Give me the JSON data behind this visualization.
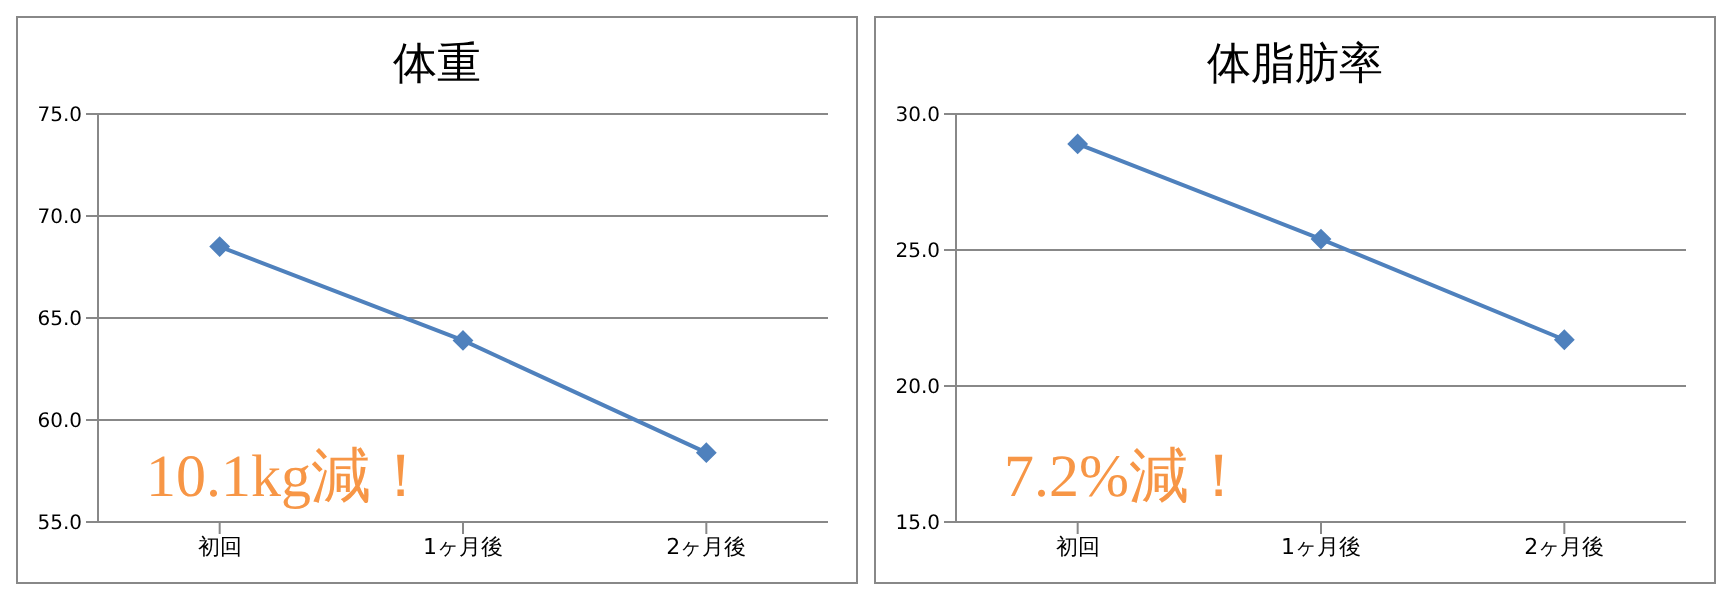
{
  "chart_data": [
    {
      "type": "line",
      "title": "体重",
      "categories": [
        "初回",
        "1ヶ月後",
        "2ヶ月後"
      ],
      "series": [
        {
          "color": "#4f81bd",
          "values": [
            68.5,
            63.9,
            58.4
          ]
        }
      ],
      "ylim": [
        55,
        75
      ],
      "yticks": [
        {
          "value": 55,
          "label": "55.0"
        },
        {
          "value": 60,
          "label": "60.0"
        },
        {
          "value": 65,
          "label": "65.0"
        },
        {
          "value": 70,
          "label": "70.0"
        },
        {
          "value": 75,
          "label": "75.0"
        }
      ],
      "grid": "y",
      "legend": false,
      "marker": "diamond",
      "line_style": "solid",
      "annotations": [
        "10.1kg減！"
      ]
    },
    {
      "type": "line",
      "title": "体脂肪率",
      "categories": [
        "初回",
        "1ヶ月後",
        "2ヶ月後"
      ],
      "series": [
        {
          "color": "#4f81bd",
          "values": [
            28.9,
            25.4,
            21.7
          ]
        }
      ],
      "ylim": [
        15,
        30
      ],
      "yticks": [
        {
          "value": 15,
          "label": "15.0"
        },
        {
          "value": 20,
          "label": "20.0"
        },
        {
          "value": 25,
          "label": "25.0"
        },
        {
          "value": 30,
          "label": "30.0"
        }
      ],
      "grid": "y",
      "legend": false,
      "marker": "diamond",
      "line_style": "solid",
      "annotations": [
        "7.2%減！"
      ]
    }
  ]
}
